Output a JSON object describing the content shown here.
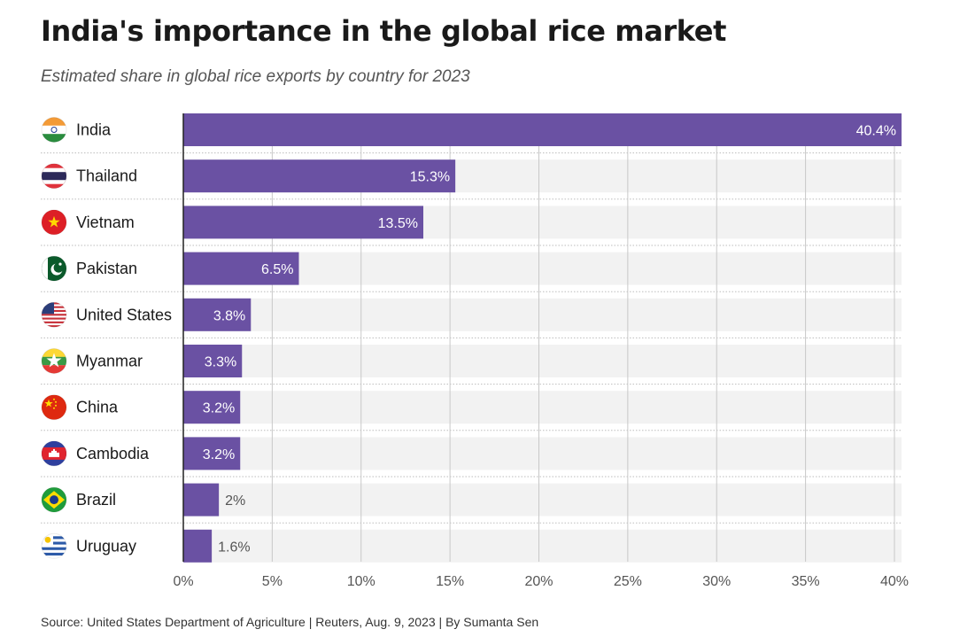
{
  "header": {
    "title": "India's importance in the global rice market",
    "subtitle": "Estimated share in global rice exports by country for 2023"
  },
  "footer": {
    "source": "Source: United States Department of Agriculture | Reuters, Aug. 9, 2023 | By Sumanta Sen"
  },
  "colors": {
    "bar": "#6a51a3",
    "track": "#f2f2f2",
    "grid": "#c8c8c8",
    "value_inside": "#ffffff",
    "value_outside": "#555555"
  },
  "chart_data": {
    "type": "bar",
    "orientation": "horizontal",
    "categories": [
      "India",
      "Thailand",
      "Vietnam",
      "Pakistan",
      "United States",
      "Myanmar",
      "China",
      "Cambodia",
      "Brazil",
      "Uruguay"
    ],
    "values": [
      40.4,
      15.3,
      13.5,
      6.5,
      3.8,
      3.3,
      3.2,
      3.2,
      2.0,
      1.6
    ],
    "value_labels": [
      "40.4%",
      "15.3%",
      "13.5%",
      "6.5%",
      "3.8%",
      "3.3%",
      "3.2%",
      "3.2%",
      "2%",
      "1.6%"
    ],
    "flags": [
      "india-flag-icon",
      "thailand-flag-icon",
      "vietnam-flag-icon",
      "pakistan-flag-icon",
      "united-states-flag-icon",
      "myanmar-flag-icon",
      "china-flag-icon",
      "cambodia-flag-icon",
      "brazil-flag-icon",
      "uruguay-flag-icon"
    ],
    "xlim": [
      0,
      40.4
    ],
    "xticks": [
      0,
      5,
      10,
      15,
      20,
      25,
      30,
      35,
      40
    ],
    "xtick_labels": [
      "0%",
      "5%",
      "10%",
      "15%",
      "20%",
      "25%",
      "30%",
      "35%",
      "40%"
    ],
    "grid": true
  }
}
